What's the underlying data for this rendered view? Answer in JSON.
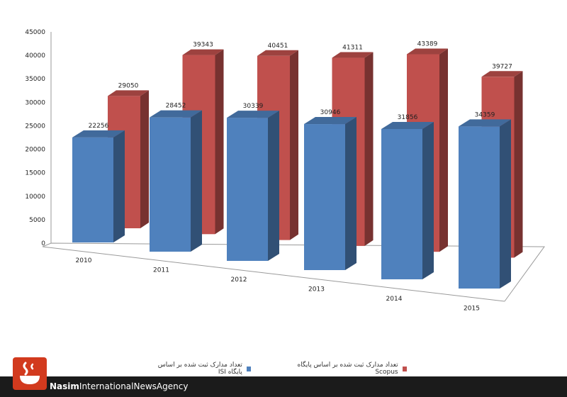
{
  "chart_data": {
    "type": "bar",
    "categories": [
      "2010",
      "2011",
      "2012",
      "2013",
      "2014",
      "2015"
    ],
    "series": [
      {
        "name": "تعداد مدارک ثبت شده بر اساس پایگاه ISI",
        "values": [
          22256,
          28452,
          30339,
          30946,
          31856,
          34359
        ],
        "color": "#4f81bd"
      },
      {
        "name": "تعداد مدارک ثبت شده بر اساس پایگاه Scopus",
        "values": [
          29050,
          39343,
          40451,
          41311,
          43389,
          39727
        ],
        "color": "#c0504d"
      }
    ],
    "yticks": [
      "0",
      "5000",
      "10000",
      "15000",
      "20000",
      "25000",
      "30000",
      "35000",
      "40000",
      "45000"
    ],
    "ylim": [
      0,
      45000
    ],
    "legend_position": "bottom"
  },
  "footer": {
    "brand_bold": "Nasim",
    "brand_rest": "InternationalNewsAgency"
  }
}
